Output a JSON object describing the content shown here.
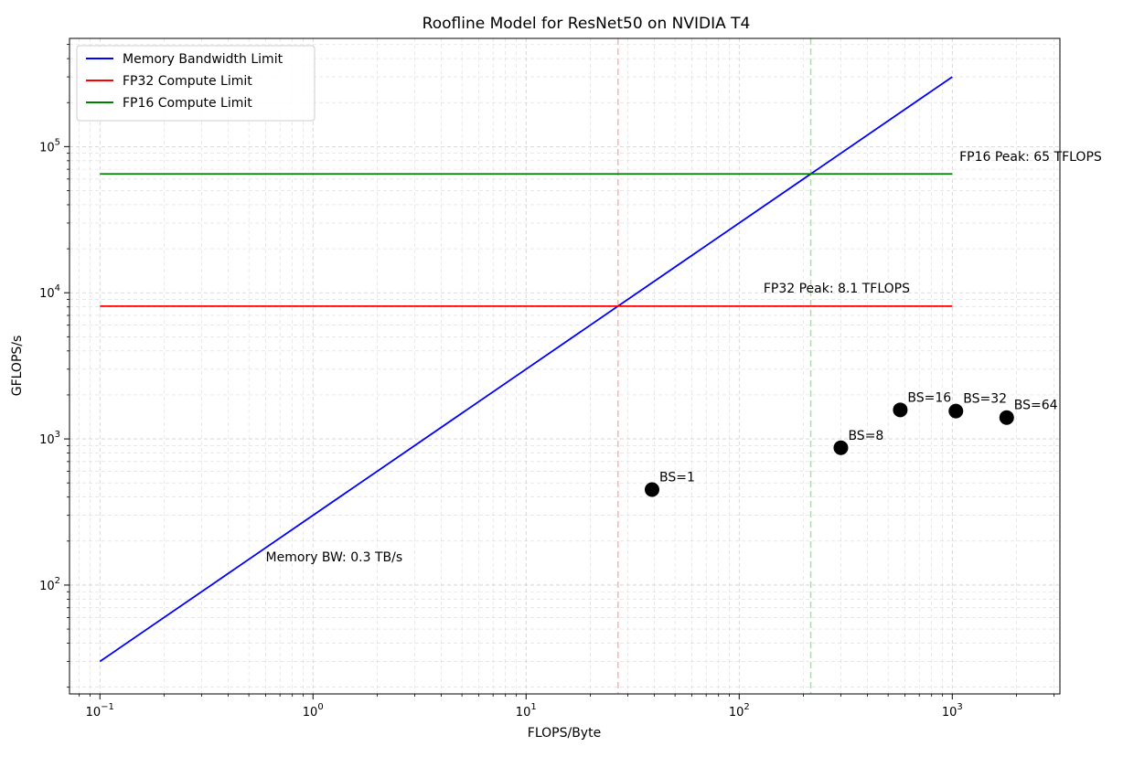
{
  "chart_data": {
    "type": "line",
    "title": "Roofline Model for ResNet50 on NVIDIA T4",
    "xlabel": "FLOPS/Byte",
    "ylabel": "GFLOPS/s",
    "xscale": "log",
    "yscale": "log",
    "xlim": [
      0.072,
      3200
    ],
    "ylim": [
      18,
      550000
    ],
    "grid": true,
    "legend_placement": "top-left",
    "x_ticks": [
      {
        "base": "10",
        "exp": "−1",
        "value": 0.1
      },
      {
        "base": "10",
        "exp": "0",
        "value": 1
      },
      {
        "base": "10",
        "exp": "1",
        "value": 10
      },
      {
        "base": "10",
        "exp": "2",
        "value": 100
      },
      {
        "base": "10",
        "exp": "3",
        "value": 1000
      }
    ],
    "y_ticks": [
      {
        "base": "10",
        "exp": "2",
        "value": 100
      },
      {
        "base": "10",
        "exp": "3",
        "value": 1000
      },
      {
        "base": "10",
        "exp": "4",
        "value": 10000
      },
      {
        "base": "10",
        "exp": "5",
        "value": 100000
      }
    ],
    "series": [
      {
        "name": "Memory Bandwidth Limit",
        "color": "#0000ff",
        "x": [
          0.1,
          1000
        ],
        "y": [
          30,
          300000
        ]
      },
      {
        "name": "FP32 Compute Limit",
        "color": "#ff0000",
        "x": [
          0.1,
          1000
        ],
        "y": [
          8100,
          8100
        ]
      },
      {
        "name": "FP16 Compute Limit",
        "color": "#008000",
        "x": [
          0.1,
          1000
        ],
        "y": [
          65000,
          65000
        ]
      }
    ],
    "vlines": [
      {
        "x": 27,
        "color": "#ff0000"
      },
      {
        "x": 216.7,
        "color": "#008000"
      }
    ],
    "points": [
      {
        "label": "BS=1",
        "x": 39,
        "y": 450
      },
      {
        "label": "BS=8",
        "x": 300,
        "y": 870
      },
      {
        "label": "BS=16",
        "x": 570,
        "y": 1580
      },
      {
        "label": "BS=32",
        "x": 1040,
        "y": 1550
      },
      {
        "label": "BS=64",
        "x": 1800,
        "y": 1400
      }
    ],
    "annotations": [
      {
        "name": "annotation-fp16-peak",
        "text": "FP16 Peak: 65 TFLOPS",
        "x": 1080,
        "y": 80000
      },
      {
        "name": "annotation-fp32-peak",
        "text": "FP32 Peak: 8.1 TFLOPS",
        "x": 130,
        "y": 10000
      },
      {
        "name": "annotation-memory-bw",
        "text": "Memory BW: 0.3 TB/s",
        "x": 0.6,
        "y": 145
      }
    ]
  }
}
